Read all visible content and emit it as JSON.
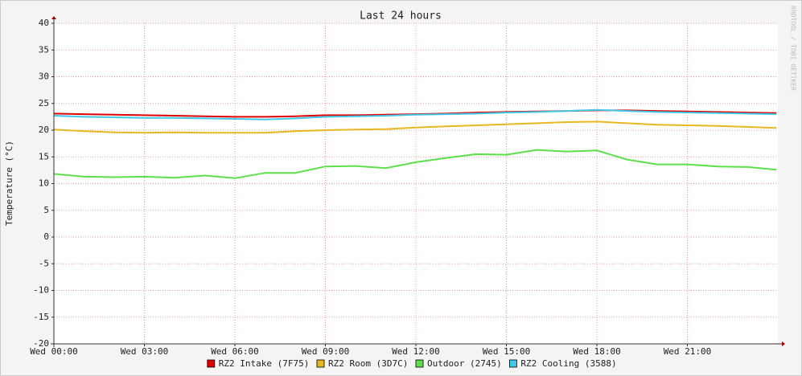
{
  "chart_data": {
    "type": "line",
    "title": "Last 24 hours",
    "y_label": "Temperature (°C)",
    "watermark": "RRDTOOL / TOBI OETIKER",
    "x": [
      0,
      1,
      2,
      3,
      4,
      5,
      6,
      7,
      8,
      9,
      10,
      11,
      12,
      13,
      14,
      15,
      16,
      17,
      18,
      19,
      20,
      21,
      22,
      23,
      23.95
    ],
    "xlim": [
      0,
      24
    ],
    "xticks": [
      {
        "value": 0,
        "label": "Wed 00:00"
      },
      {
        "value": 3,
        "label": "Wed 03:00"
      },
      {
        "value": 6,
        "label": "Wed 06:00"
      },
      {
        "value": 9,
        "label": "Wed 09:00"
      },
      {
        "value": 12,
        "label": "Wed 12:00"
      },
      {
        "value": 15,
        "label": "Wed 15:00"
      },
      {
        "value": 18,
        "label": "Wed 18:00"
      },
      {
        "value": 21,
        "label": "Wed 21:00"
      }
    ],
    "ylim": [
      -20,
      40
    ],
    "yticks": [
      -20,
      -15,
      -10,
      -5,
      0,
      5,
      10,
      15,
      20,
      25,
      30,
      35,
      40
    ],
    "grid": true,
    "legend": "bottom",
    "series": [
      {
        "name": "RZ2 Intake (7F75)",
        "color": "#e00000",
        "values": [
          23.1,
          23.0,
          22.9,
          22.8,
          22.7,
          22.6,
          22.5,
          22.5,
          22.6,
          22.8,
          22.8,
          22.9,
          23.0,
          23.1,
          23.3,
          23.4,
          23.5,
          23.6,
          23.7,
          23.7,
          23.6,
          23.5,
          23.4,
          23.3,
          23.2
        ]
      },
      {
        "name": "RZ2 Room (3D7C)",
        "color": "#e8b820",
        "values": [
          20.1,
          19.8,
          19.6,
          19.5,
          19.6,
          19.5,
          19.5,
          19.5,
          19.8,
          20.0,
          20.1,
          20.2,
          20.5,
          20.7,
          20.9,
          21.1,
          21.3,
          21.5,
          21.6,
          21.3,
          21.0,
          20.9,
          20.8,
          20.6,
          20.4
        ]
      },
      {
        "name": "Outdoor (2745)",
        "color": "#5ce04a",
        "values": [
          11.8,
          11.3,
          11.2,
          11.3,
          11.1,
          11.5,
          11.0,
          12.0,
          12.0,
          13.2,
          13.3,
          12.9,
          14.0,
          14.8,
          15.5,
          15.4,
          16.3,
          16.0,
          16.2,
          14.5,
          13.6,
          13.6,
          13.2,
          13.1,
          12.6
        ]
      },
      {
        "name": "RZ2 Cooling (3588)",
        "color": "#40c8e8",
        "values": [
          22.7,
          22.5,
          22.4,
          22.3,
          22.3,
          22.2,
          22.1,
          22.0,
          22.2,
          22.5,
          22.6,
          22.7,
          22.9,
          23.0,
          23.1,
          23.3,
          23.4,
          23.6,
          23.8,
          23.6,
          23.4,
          23.3,
          23.2,
          23.1,
          23.0
        ]
      }
    ]
  }
}
